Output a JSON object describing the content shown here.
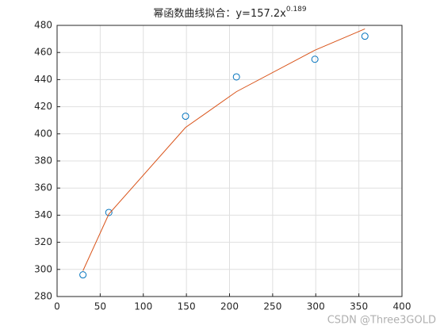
{
  "chart_data": {
    "type": "scatter",
    "title": "幂函数曲线拟合：y=157.2x",
    "title_exponent": "0.189",
    "watermark": "CSDN @Three3GOLD",
    "xlim": [
      0,
      400
    ],
    "xticks": [
      0,
      50,
      100,
      150,
      200,
      250,
      300,
      350,
      400
    ],
    "ylim": [
      280,
      480
    ],
    "yticks": [
      280,
      300,
      320,
      340,
      360,
      380,
      400,
      420,
      440,
      460,
      480
    ],
    "grid": true,
    "series": [
      {
        "style": "marker",
        "color": "#0072BD",
        "x": [
          30,
          60,
          149,
          208,
          299,
          357
        ],
        "values": [
          296,
          342,
          413,
          442,
          455,
          472
        ]
      },
      {
        "style": "line",
        "color": "#D95319",
        "x": [
          30,
          60,
          149,
          208,
          299,
          357
        ],
        "values": [
          299.0,
          340.8,
          404.7,
          431.1,
          461.7,
          477.4
        ]
      }
    ]
  }
}
